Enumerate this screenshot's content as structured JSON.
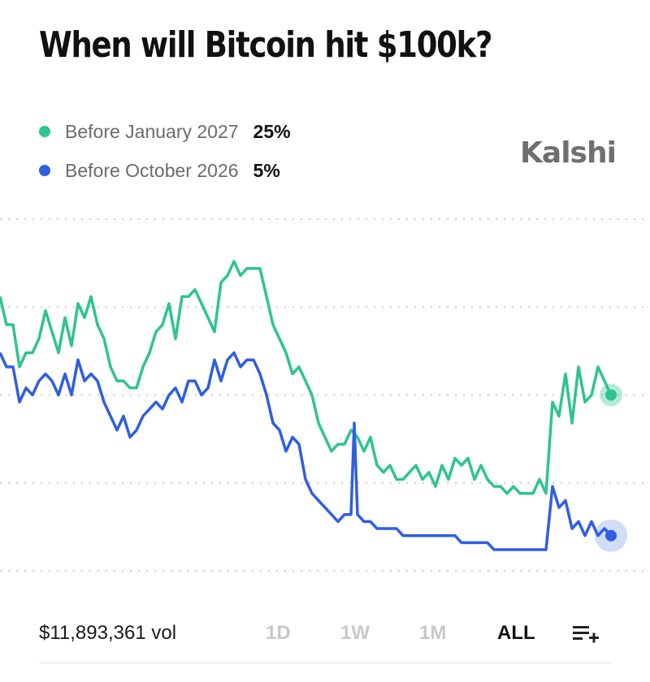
{
  "header": {
    "title": "When will Bitcoin hit $100k?"
  },
  "brand": {
    "name": "Kalshi"
  },
  "legend": [
    {
      "name": "Before January 2027",
      "value": "25%",
      "color": "#2fc48f"
    },
    {
      "name": "Before October 2026",
      "value": "5%",
      "color": "#2f5ee3"
    }
  ],
  "footer": {
    "volume": "$11,893,361 vol",
    "ranges": [
      "1D",
      "1W",
      "1M",
      "ALL"
    ],
    "active_range": "ALL",
    "menu_icon": "playlist-add-icon"
  },
  "chart_data": {
    "type": "line",
    "title": "When will Bitcoin hit $100k?",
    "x_domain": [
      0,
      100
    ],
    "ylim": [
      0,
      50
    ],
    "grid": true,
    "axis_labels_shown": false,
    "series": [
      {
        "name": "Before January 2027",
        "color": "#2fc48f",
        "last_value": 25,
        "points": [
          [
            0,
            39
          ],
          [
            1,
            35
          ],
          [
            2,
            35
          ],
          [
            3,
            29
          ],
          [
            4,
            31
          ],
          [
            5,
            31
          ],
          [
            6,
            33
          ],
          [
            7,
            37
          ],
          [
            8,
            34
          ],
          [
            9,
            31
          ],
          [
            10,
            36
          ],
          [
            11,
            32
          ],
          [
            12,
            38
          ],
          [
            13,
            36
          ],
          [
            14,
            39
          ],
          [
            15,
            35
          ],
          [
            16,
            33
          ],
          [
            17,
            29
          ],
          [
            18,
            27
          ],
          [
            19,
            27
          ],
          [
            20,
            26
          ],
          [
            21,
            26
          ],
          [
            22,
            29
          ],
          [
            23,
            31
          ],
          [
            24,
            34
          ],
          [
            25,
            35
          ],
          [
            26,
            38
          ],
          [
            27,
            33
          ],
          [
            28,
            39
          ],
          [
            29,
            39
          ],
          [
            30,
            40
          ],
          [
            31,
            38
          ],
          [
            32,
            36
          ],
          [
            33,
            34
          ],
          [
            34,
            41
          ],
          [
            35,
            42
          ],
          [
            36,
            44
          ],
          [
            37,
            42
          ],
          [
            38,
            43
          ],
          [
            39,
            43
          ],
          [
            40,
            43
          ],
          [
            41,
            39
          ],
          [
            42,
            35
          ],
          [
            43,
            33
          ],
          [
            44,
            31
          ],
          [
            45,
            28
          ],
          [
            46,
            29
          ],
          [
            47,
            27
          ],
          [
            48,
            25
          ],
          [
            49,
            21
          ],
          [
            50,
            19
          ],
          [
            51,
            17
          ],
          [
            52,
            18
          ],
          [
            53,
            18
          ],
          [
            54,
            20
          ],
          [
            55,
            19
          ],
          [
            56,
            17
          ],
          [
            57,
            19
          ],
          [
            58,
            15
          ],
          [
            59,
            14
          ],
          [
            60,
            15
          ],
          [
            61,
            13
          ],
          [
            62,
            13
          ],
          [
            63,
            14
          ],
          [
            64,
            15
          ],
          [
            65,
            13
          ],
          [
            66,
            14
          ],
          [
            67,
            12
          ],
          [
            68,
            15
          ],
          [
            69,
            13
          ],
          [
            70,
            16
          ],
          [
            71,
            15
          ],
          [
            72,
            16
          ],
          [
            73,
            13
          ],
          [
            74,
            15
          ],
          [
            75,
            13
          ],
          [
            76,
            12
          ],
          [
            77,
            12
          ],
          [
            78,
            11
          ],
          [
            79,
            12
          ],
          [
            80,
            11
          ],
          [
            81,
            11
          ],
          [
            82,
            11
          ],
          [
            83,
            13
          ],
          [
            84,
            11
          ],
          [
            85,
            24
          ],
          [
            86,
            22
          ],
          [
            87,
            28
          ],
          [
            88,
            21
          ],
          [
            89,
            29
          ],
          [
            90,
            24
          ],
          [
            91,
            25
          ],
          [
            92,
            29
          ],
          [
            93,
            27
          ],
          [
            94,
            25
          ]
        ]
      },
      {
        "name": "Before October 2026",
        "color": "#2f5ee3",
        "last_value": 5,
        "points": [
          [
            0,
            31
          ],
          [
            1,
            29
          ],
          [
            2,
            29
          ],
          [
            3,
            24
          ],
          [
            4,
            26
          ],
          [
            5,
            25
          ],
          [
            6,
            27
          ],
          [
            7,
            28
          ],
          [
            8,
            27
          ],
          [
            9,
            25
          ],
          [
            10,
            28
          ],
          [
            11,
            25
          ],
          [
            12,
            30
          ],
          [
            13,
            27
          ],
          [
            14,
            28
          ],
          [
            15,
            27
          ],
          [
            16,
            24
          ],
          [
            17,
            22
          ],
          [
            18,
            20
          ],
          [
            19,
            22
          ],
          [
            20,
            19
          ],
          [
            21,
            20
          ],
          [
            22,
            22
          ],
          [
            23,
            23
          ],
          [
            24,
            24
          ],
          [
            25,
            23
          ],
          [
            26,
            25
          ],
          [
            27,
            26
          ],
          [
            28,
            24
          ],
          [
            29,
            27
          ],
          [
            30,
            27
          ],
          [
            31,
            25
          ],
          [
            32,
            26
          ],
          [
            33,
            30
          ],
          [
            34,
            27
          ],
          [
            35,
            30
          ],
          [
            36,
            31
          ],
          [
            37,
            29
          ],
          [
            38,
            30
          ],
          [
            39,
            30
          ],
          [
            40,
            28
          ],
          [
            41,
            25
          ],
          [
            42,
            21
          ],
          [
            43,
            20
          ],
          [
            44,
            17
          ],
          [
            45,
            19
          ],
          [
            46,
            18
          ],
          [
            47,
            13
          ],
          [
            48,
            11
          ],
          [
            49,
            10
          ],
          [
            50,
            9
          ],
          [
            51,
            8
          ],
          [
            52,
            7
          ],
          [
            53,
            8
          ],
          [
            54,
            8
          ],
          [
            54.5,
            21
          ],
          [
            55,
            8
          ],
          [
            56,
            7
          ],
          [
            57,
            7
          ],
          [
            58,
            6
          ],
          [
            59,
            6
          ],
          [
            60,
            6
          ],
          [
            61,
            6
          ],
          [
            62,
            5
          ],
          [
            63,
            5
          ],
          [
            64,
            5
          ],
          [
            65,
            5
          ],
          [
            66,
            5
          ],
          [
            67,
            5
          ],
          [
            68,
            5
          ],
          [
            69,
            5
          ],
          [
            70,
            5
          ],
          [
            71,
            4
          ],
          [
            72,
            4
          ],
          [
            73,
            4
          ],
          [
            74,
            4
          ],
          [
            75,
            4
          ],
          [
            76,
            3
          ],
          [
            77,
            3
          ],
          [
            78,
            3
          ],
          [
            79,
            3
          ],
          [
            80,
            3
          ],
          [
            81,
            3
          ],
          [
            82,
            3
          ],
          [
            83,
            3
          ],
          [
            84,
            3
          ],
          [
            85,
            12
          ],
          [
            86,
            9
          ],
          [
            87,
            10
          ],
          [
            88,
            6
          ],
          [
            89,
            7
          ],
          [
            90,
            5
          ],
          [
            91,
            7
          ],
          [
            92,
            5
          ],
          [
            93,
            6
          ],
          [
            94,
            5
          ]
        ]
      }
    ]
  }
}
